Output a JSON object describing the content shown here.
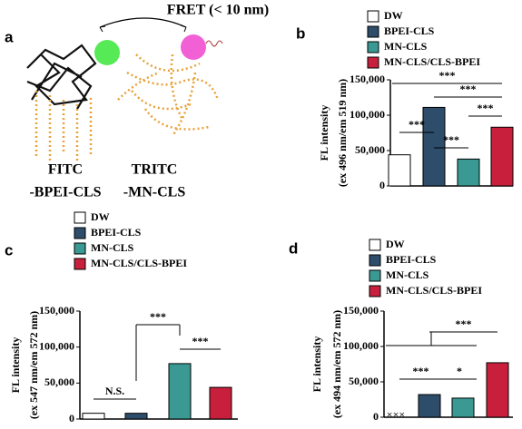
{
  "diagram": {
    "panel": "a",
    "fret_label": "FRET (< 10 nm)",
    "labels": [
      [
        "FITC",
        "-BPEI-CLS"
      ],
      [
        "TRITC",
        "-MN-CLS"
      ]
    ]
  },
  "chart_data": [
    {
      "type": "bar",
      "panel": "b",
      "ylabel": [
        "FL intensity",
        "(ex 496 nm/em 519 nm)"
      ],
      "categories": [
        null
      ],
      "series": [
        {
          "name": "DW",
          "color": "#ffffff",
          "values": [
            44000
          ]
        },
        {
          "name": "BPEI-CLS",
          "color": "#2e4d6b",
          "values": [
            111000
          ]
        },
        {
          "name": "MN-CLS",
          "color": "#3a9a93",
          "values": [
            38000
          ]
        },
        {
          "name": "MN-CLS/CLS-BPEI",
          "color": "#c8203c",
          "values": [
            83000
          ]
        }
      ],
      "ylim": [
        0,
        150000
      ],
      "yticks": [
        0,
        {
          "value": 50000,
          "label": "50,000"
        },
        {
          "value": 100000,
          "label": "100,000"
        },
        {
          "value": 150000,
          "label": "150,000"
        }
      ],
      "annotations": [
        "***",
        "***",
        "***",
        "***",
        "***"
      ]
    },
    {
      "type": "bar",
      "panel": "c",
      "ylabel": [
        "FL intensity",
        "(ex 547 nm/em 572 nm)"
      ],
      "categories": [
        null
      ],
      "series": [
        {
          "name": "DW",
          "color": "#ffffff",
          "values": [
            8000
          ]
        },
        {
          "name": "BPEI-CLS",
          "color": "#2e4d6b",
          "values": [
            8000
          ]
        },
        {
          "name": "MN-CLS",
          "color": "#3a9a93",
          "values": [
            77000
          ]
        },
        {
          "name": "MN-CLS/CLS-BPEI",
          "color": "#c8203c",
          "values": [
            44000
          ]
        }
      ],
      "ylim": [
        0,
        150000
      ],
      "yticks": [
        0,
        {
          "value": 50000,
          "label": "50,000"
        },
        {
          "value": 100000,
          "label": "100,000"
        },
        {
          "value": 150000,
          "label": "150,000"
        }
      ],
      "annotations": [
        "N.S.",
        "***",
        "***"
      ]
    },
    {
      "type": "bar",
      "panel": "d",
      "ylabel": [
        "FL intensity",
        "(ex 494 nm/em 572 nm)"
      ],
      "categories": [
        null
      ],
      "series": [
        {
          "name": "DW",
          "color": "#ffffff",
          "values": [
            0
          ]
        },
        {
          "name": "BPEI-CLS",
          "color": "#2e4d6b",
          "values": [
            32000
          ]
        },
        {
          "name": "MN-CLS",
          "color": "#3a9a93",
          "values": [
            27000
          ]
        },
        {
          "name": "MN-CLS/CLS-BPEI",
          "color": "#c8203c",
          "values": [
            77000
          ]
        }
      ],
      "ylim": [
        0,
        150000
      ],
      "yticks": [
        0,
        {
          "value": 50000,
          "label": "50,000"
        },
        {
          "value": 100000,
          "label": "100,000"
        },
        {
          "value": 150000,
          "label": "150,000"
        }
      ],
      "annotations": [
        "***",
        "*",
        "***"
      ]
    }
  ]
}
